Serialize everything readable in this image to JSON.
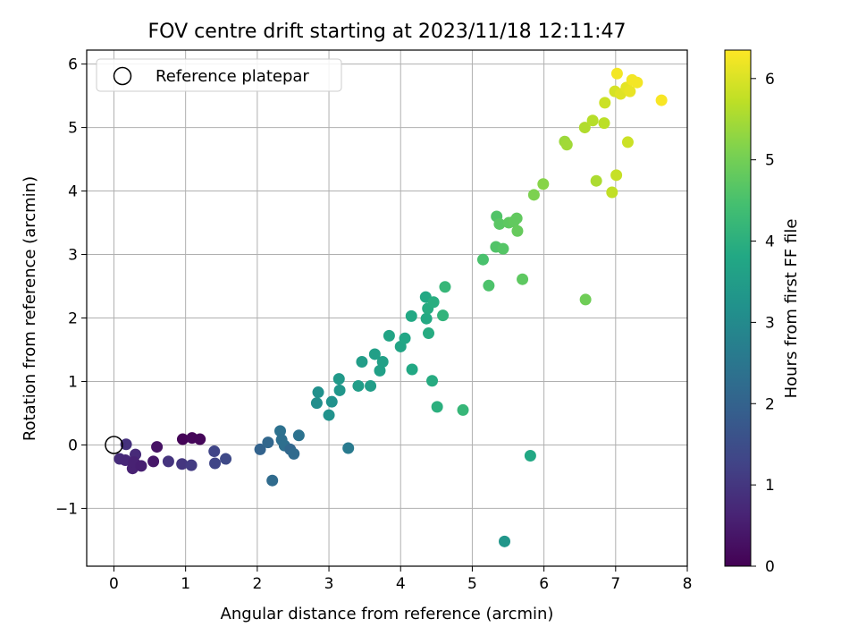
{
  "chart_data": {
    "type": "scatter",
    "title": "FOV centre drift starting at 2023/11/18 12:11:47",
    "xlabel": "Angular distance from reference (arcmin)",
    "ylabel": "Rotation from reference (arcmin)",
    "xlim": [
      -0.38,
      8.0
    ],
    "ylim": [
      -1.91,
      6.22
    ],
    "xticks": [
      0,
      1,
      2,
      3,
      4,
      5,
      6,
      7,
      8
    ],
    "yticks": [
      -1,
      0,
      1,
      2,
      3,
      4,
      5,
      6
    ],
    "xtick_labels": [
      "0",
      "1",
      "2",
      "3",
      "4",
      "5",
      "6",
      "7",
      "8"
    ],
    "ytick_labels": [
      "−1",
      "0",
      "1",
      "2",
      "3",
      "4",
      "5",
      "6"
    ],
    "grid": true,
    "legend": {
      "position": "top-left",
      "label": "Reference platepar"
    },
    "reference_point": {
      "x": 0,
      "y": 0
    },
    "colorbar": {
      "label": "Hours from first FF file",
      "range": [
        0,
        6.35
      ],
      "ticks": [
        0,
        1,
        2,
        3,
        4,
        5,
        6
      ],
      "tick_labels": [
        "0",
        "1",
        "2",
        "3",
        "4",
        "5",
        "6"
      ],
      "colormap": "viridis"
    },
    "points": [
      {
        "x": 0.17,
        "y": 0.01,
        "c": 0.9
      },
      {
        "x": 0.08,
        "y": -0.22,
        "c": 0.8
      },
      {
        "x": 0.16,
        "y": -0.24,
        "c": 0.7
      },
      {
        "x": 0.26,
        "y": -0.37,
        "c": 0.6
      },
      {
        "x": 0.3,
        "y": -0.15,
        "c": 0.75
      },
      {
        "x": 0.28,
        "y": -0.27,
        "c": 0.6
      },
      {
        "x": 0.38,
        "y": -0.33,
        "c": 0.55
      },
      {
        "x": 0.55,
        "y": -0.26,
        "c": 0.4
      },
      {
        "x": 0.6,
        "y": -0.03,
        "c": 0.3
      },
      {
        "x": 0.96,
        "y": 0.09,
        "c": 0.05
      },
      {
        "x": 1.09,
        "y": 0.11,
        "c": 0.1
      },
      {
        "x": 1.2,
        "y": 0.09,
        "c": 0.1
      },
      {
        "x": 0.76,
        "y": -0.26,
        "c": 0.95
      },
      {
        "x": 0.95,
        "y": -0.3,
        "c": 1.0
      },
      {
        "x": 1.08,
        "y": -0.32,
        "c": 1.1
      },
      {
        "x": 1.4,
        "y": -0.1,
        "c": 1.3
      },
      {
        "x": 1.41,
        "y": -0.29,
        "c": 1.3
      },
      {
        "x": 1.56,
        "y": -0.22,
        "c": 1.4
      },
      {
        "x": 2.04,
        "y": -0.07,
        "c": 2.0
      },
      {
        "x": 2.15,
        "y": 0.04,
        "c": 2.1
      },
      {
        "x": 2.21,
        "y": -0.56,
        "c": 2.2
      },
      {
        "x": 2.32,
        "y": 0.22,
        "c": 2.35
      },
      {
        "x": 2.34,
        "y": 0.08,
        "c": 2.3
      },
      {
        "x": 2.38,
        "y": -0.01,
        "c": 2.3
      },
      {
        "x": 2.46,
        "y": -0.07,
        "c": 2.1
      },
      {
        "x": 2.51,
        "y": -0.14,
        "c": 2.2
      },
      {
        "x": 2.58,
        "y": 0.15,
        "c": 2.4
      },
      {
        "x": 3.27,
        "y": -0.05,
        "c": 2.6
      },
      {
        "x": 2.83,
        "y": 0.66,
        "c": 3.1
      },
      {
        "x": 2.85,
        "y": 0.83,
        "c": 3.15
      },
      {
        "x": 3.0,
        "y": 0.47,
        "c": 3.2
      },
      {
        "x": 3.04,
        "y": 0.68,
        "c": 3.2
      },
      {
        "x": 3.14,
        "y": 1.04,
        "c": 3.4
      },
      {
        "x": 3.15,
        "y": 0.86,
        "c": 3.3
      },
      {
        "x": 3.41,
        "y": 0.93,
        "c": 3.5
      },
      {
        "x": 3.46,
        "y": 1.31,
        "c": 3.5
      },
      {
        "x": 3.58,
        "y": 0.93,
        "c": 3.5
      },
      {
        "x": 3.64,
        "y": 1.43,
        "c": 3.55
      },
      {
        "x": 3.71,
        "y": 1.17,
        "c": 3.6
      },
      {
        "x": 3.75,
        "y": 1.31,
        "c": 3.6
      },
      {
        "x": 3.84,
        "y": 1.72,
        "c": 3.7
      },
      {
        "x": 4.0,
        "y": 1.55,
        "c": 3.7
      },
      {
        "x": 4.06,
        "y": 1.68,
        "c": 3.75
      },
      {
        "x": 4.15,
        "y": 2.03,
        "c": 3.8
      },
      {
        "x": 4.16,
        "y": 1.19,
        "c": 3.8
      },
      {
        "x": 4.35,
        "y": 2.33,
        "c": 3.8
      },
      {
        "x": 4.36,
        "y": 1.99,
        "c": 3.85
      },
      {
        "x": 4.38,
        "y": 2.15,
        "c": 3.9
      },
      {
        "x": 4.39,
        "y": 1.76,
        "c": 3.9
      },
      {
        "x": 4.44,
        "y": 1.01,
        "c": 3.9
      },
      {
        "x": 4.46,
        "y": 2.25,
        "c": 3.95
      },
      {
        "x": 4.51,
        "y": 0.6,
        "c": 4.0
      },
      {
        "x": 4.59,
        "y": 2.04,
        "c": 4.1
      },
      {
        "x": 4.62,
        "y": 2.49,
        "c": 4.2
      },
      {
        "x": 4.87,
        "y": 0.55,
        "c": 4.2
      },
      {
        "x": 5.45,
        "y": -1.52,
        "c": 3.3
      },
      {
        "x": 5.81,
        "y": -0.17,
        "c": 3.8
      },
      {
        "x": 5.15,
        "y": 2.92,
        "c": 4.5
      },
      {
        "x": 5.23,
        "y": 2.51,
        "c": 4.55
      },
      {
        "x": 5.33,
        "y": 3.12,
        "c": 4.6
      },
      {
        "x": 5.34,
        "y": 3.6,
        "c": 4.6
      },
      {
        "x": 5.38,
        "y": 3.48,
        "c": 4.7
      },
      {
        "x": 5.43,
        "y": 3.09,
        "c": 4.65
      },
      {
        "x": 5.51,
        "y": 3.5,
        "c": 4.75
      },
      {
        "x": 5.58,
        "y": 3.52,
        "c": 4.8
      },
      {
        "x": 5.62,
        "y": 3.57,
        "c": 4.8
      },
      {
        "x": 5.63,
        "y": 3.37,
        "c": 4.85
      },
      {
        "x": 5.7,
        "y": 2.61,
        "c": 4.75
      },
      {
        "x": 5.86,
        "y": 3.94,
        "c": 5.1
      },
      {
        "x": 5.99,
        "y": 4.11,
        "c": 5.2
      },
      {
        "x": 6.29,
        "y": 4.78,
        "c": 5.4
      },
      {
        "x": 6.32,
        "y": 4.73,
        "c": 5.45
      },
      {
        "x": 6.58,
        "y": 2.29,
        "c": 4.95
      },
      {
        "x": 6.57,
        "y": 5.0,
        "c": 5.6
      },
      {
        "x": 6.68,
        "y": 5.11,
        "c": 5.65
      },
      {
        "x": 6.73,
        "y": 4.16,
        "c": 5.55
      },
      {
        "x": 6.84,
        "y": 5.07,
        "c": 5.7
      },
      {
        "x": 6.85,
        "y": 5.39,
        "c": 5.85
      },
      {
        "x": 6.95,
        "y": 3.98,
        "c": 5.75
      },
      {
        "x": 6.99,
        "y": 5.57,
        "c": 5.95
      },
      {
        "x": 7.01,
        "y": 4.25,
        "c": 5.8
      },
      {
        "x": 7.02,
        "y": 5.85,
        "c": 6.25
      },
      {
        "x": 7.07,
        "y": 5.53,
        "c": 6.05
      },
      {
        "x": 7.15,
        "y": 5.63,
        "c": 6.1
      },
      {
        "x": 7.17,
        "y": 4.77,
        "c": 5.85
      },
      {
        "x": 7.2,
        "y": 5.57,
        "c": 6.15
      },
      {
        "x": 7.23,
        "y": 5.75,
        "c": 6.25
      },
      {
        "x": 7.3,
        "y": 5.71,
        "c": 6.25
      },
      {
        "x": 7.64,
        "y": 5.43,
        "c": 6.3
      }
    ]
  }
}
